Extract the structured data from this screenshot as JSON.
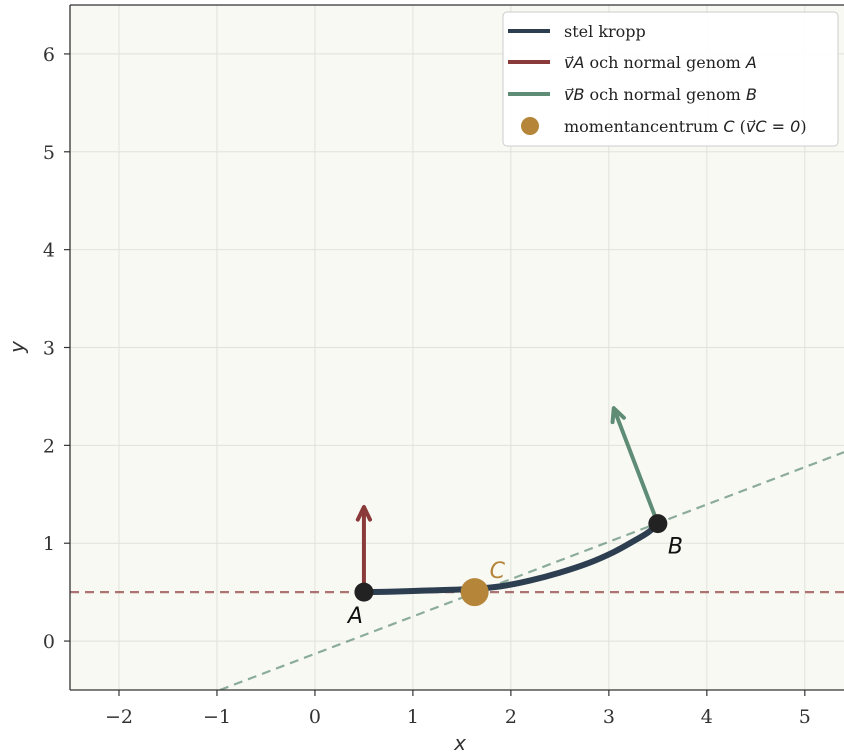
{
  "chart_data": {
    "type": "line",
    "title": "",
    "xlabel": "x",
    "ylabel": "y",
    "xlim": [
      -2.5,
      5.4
    ],
    "ylim": [
      -0.5,
      6.5
    ],
    "x_ticks": [
      -2,
      -1,
      0,
      1,
      2,
      3,
      4,
      5
    ],
    "y_ticks": [
      0,
      1,
      2,
      3,
      4,
      5,
      6
    ],
    "x_tick_labels": [
      "−2",
      "−1",
      "0",
      "1",
      "2",
      "3",
      "4",
      "5"
    ],
    "y_tick_labels": [
      "0",
      "1",
      "2",
      "3",
      "4",
      "5",
      "6"
    ],
    "grid": true,
    "legend_position": "top-right",
    "legend": [
      {
        "key": "body",
        "pre": "stel kropp",
        "math": "",
        "mid": "",
        "math2": "",
        "post": ""
      },
      {
        "key": "va",
        "pre": "",
        "math": "v⃗A",
        "mid": " och normal genom ",
        "math2": "A",
        "post": ""
      },
      {
        "key": "vb",
        "pre": "",
        "math": "v⃗B",
        "mid": " och normal genom ",
        "math2": "B",
        "post": ""
      },
      {
        "key": "c",
        "pre": "momentancentrum ",
        "math": "C",
        "mid": " (",
        "math2": "v⃗C = 0",
        "post": ")"
      }
    ],
    "colors": {
      "body": "#2c3e50",
      "va": "#8b3a3a",
      "vb": "#5e8c75",
      "c": "#b5853a",
      "points": "#222222"
    },
    "body_curve": [
      [
        0.5,
        0.5
      ],
      [
        0.8,
        0.505
      ],
      [
        1.1,
        0.515
      ],
      [
        1.4,
        0.525
      ],
      [
        1.65,
        0.535
      ],
      [
        1.9,
        0.56
      ],
      [
        2.2,
        0.62
      ],
      [
        2.5,
        0.7
      ],
      [
        2.8,
        0.8
      ],
      [
        3.05,
        0.91
      ],
      [
        3.25,
        1.02
      ],
      [
        3.4,
        1.11
      ],
      [
        3.5,
        1.2
      ]
    ],
    "point_A": {
      "label": "A",
      "x": 0.5,
      "y": 0.5
    },
    "point_B": {
      "label": "B",
      "x": 3.5,
      "y": 1.2
    },
    "point_C": {
      "label": "C",
      "x": 1.63,
      "y": 0.5
    },
    "velocity_A": {
      "from": [
        0.5,
        0.5
      ],
      "to": [
        0.5,
        1.37
      ]
    },
    "velocity_B": {
      "from": [
        3.5,
        1.2
      ],
      "to": [
        3.05,
        2.38
      ]
    },
    "normal_A": {
      "points": [
        [
          -2.5,
          0.5
        ],
        [
          5.4,
          0.5
        ]
      ]
    },
    "normal_B": {
      "points": [
        [
          -0.97,
          -0.5
        ],
        [
          5.4,
          1.93
        ]
      ]
    }
  }
}
